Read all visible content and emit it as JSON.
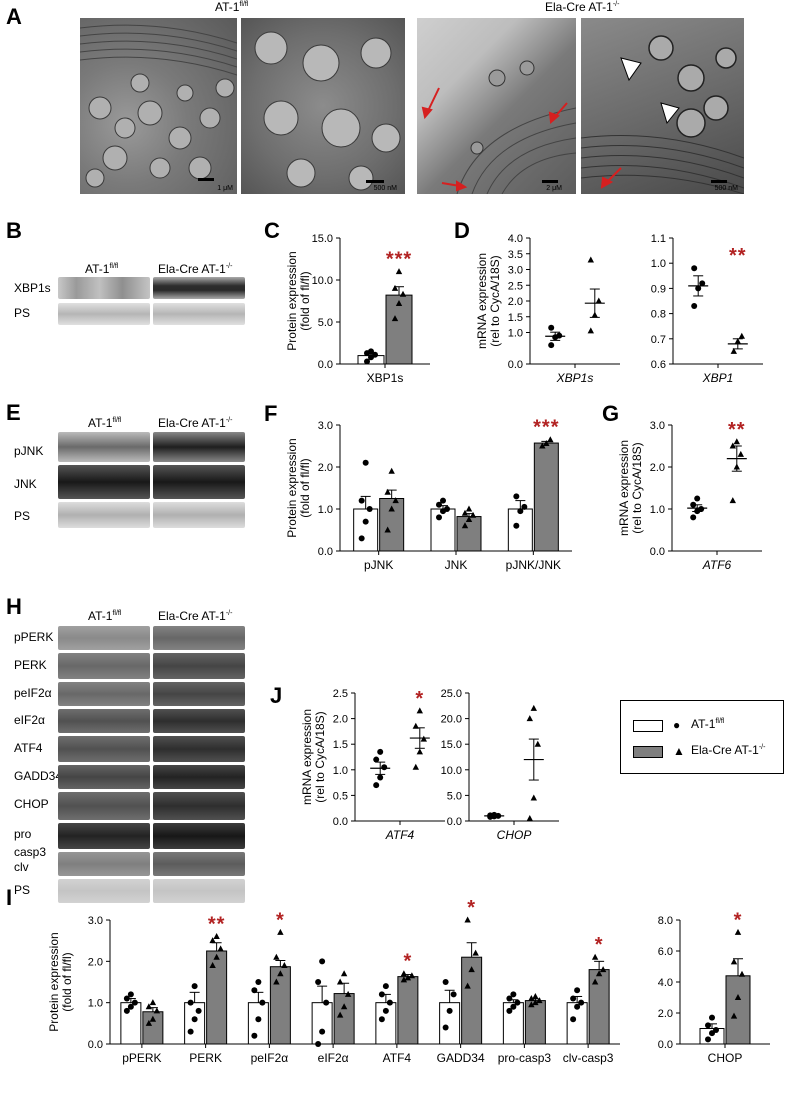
{
  "panels": {
    "A": "A",
    "B": "B",
    "C": "C",
    "D": "D",
    "E": "E",
    "F": "F",
    "G": "G",
    "H": "H",
    "I": "I",
    "J": "J"
  },
  "genotypes": {
    "control": "AT-1",
    "control_sup": "fl/fl",
    "knockout": "Ela-Cre AT-1",
    "knockout_sup": "-/-"
  },
  "em": {
    "scalebars": [
      "1 μM",
      "500 nM",
      "2 μM",
      "500 nM"
    ]
  },
  "blots": {
    "B": [
      "XBP1s",
      "PS"
    ],
    "E": [
      "pJNK",
      "JNK",
      "PS"
    ],
    "H": [
      "pPERK",
      "PERK",
      "peIF2α",
      "eIF2α",
      "ATF4",
      "GADD34",
      "CHOP",
      "pro",
      "casp3",
      "clv",
      "PS"
    ]
  },
  "legend": {
    "control": "AT-1",
    "control_sup": "fl/fl",
    "knockout": "Ela-Cre AT-1",
    "knockout_sup": "-/-"
  },
  "colors": {
    "control_bar": "#ffffff",
    "knockout_bar": "#7f7f7f",
    "significance": "#b22222"
  },
  "chart_data": [
    {
      "panel": "C",
      "type": "bar",
      "ylabel": [
        "Protein expression",
        "(fold of fl/fl)"
      ],
      "categories": [
        "XBP1s"
      ],
      "ylim": [
        0,
        15
      ],
      "yticks": [
        "0.0",
        "5.0",
        "10.0",
        "15.0"
      ],
      "series": [
        {
          "name": "AT-1 fl/fl",
          "values": [
            1.0
          ],
          "sem": [
            0.3
          ],
          "points": [
            [
              0.3,
              0.8,
              1.1,
              1.3,
              1.5
            ]
          ]
        },
        {
          "name": "Ela-Cre AT-1 -/-",
          "values": [
            8.2
          ],
          "sem": [
            1.0
          ],
          "points": [
            [
              5.4,
              7.2,
              8.3,
              9.0,
              11.0
            ]
          ]
        }
      ],
      "significance": [
        "***"
      ]
    },
    {
      "panel": "D1",
      "type": "scatter",
      "ylabel": [
        "mRNA expression",
        "(rel to CycA/18S)"
      ],
      "categories": [
        "XBP1s"
      ],
      "ylim": [
        0,
        4
      ],
      "yticks": [
        "0.0",
        "1.0",
        "1.5",
        "2.0",
        "2.5",
        "3.0",
        "3.5",
        "4.0"
      ],
      "series": [
        {
          "name": "AT-1 fl/fl",
          "values": [
            0.88
          ],
          "sem": [
            0.13
          ],
          "points": [
            [
              0.6,
              0.85,
              0.9,
              1.15
            ]
          ]
        },
        {
          "name": "Ela-Cre AT-1 -/-",
          "values": [
            1.93
          ],
          "sem": [
            0.45
          ],
          "points": [
            [
              1.05,
              1.55,
              2.0,
              3.3
            ]
          ]
        }
      ],
      "significance": [
        ""
      ]
    },
    {
      "panel": "D2",
      "type": "scatter",
      "categories": [
        "XBP1"
      ],
      "ylim": [
        0.6,
        1.1
      ],
      "yticks": [
        "0.6",
        "0.7",
        "0.8",
        "0.9",
        "1.0",
        "1.1"
      ],
      "series": [
        {
          "name": "AT-1 fl/fl",
          "values": [
            0.91
          ],
          "sem": [
            0.04
          ],
          "points": [
            [
              0.83,
              0.9,
              0.92,
              0.98
            ]
          ]
        },
        {
          "name": "Ela-Cre AT-1 -/-",
          "values": [
            0.68
          ],
          "sem": [
            0.02
          ],
          "points": [
            [
              0.65,
              0.69,
              0.71
            ]
          ]
        }
      ],
      "significance": [
        "**"
      ]
    },
    {
      "panel": "F",
      "type": "bar",
      "ylabel": [
        "Protein expression",
        "(fold of fl/fl)"
      ],
      "categories": [
        "pJNK",
        "JNK",
        "pJNK/JNK"
      ],
      "ylim": [
        0,
        3
      ],
      "yticks": [
        "0.0",
        "1.0",
        "2.0",
        "3.0"
      ],
      "series": [
        {
          "name": "AT-1 fl/fl",
          "values": [
            1.0,
            1.0,
            1.0
          ],
          "sem": [
            0.3,
            0.08,
            0.2
          ],
          "points": [
            [
              0.3,
              0.7,
              1.0,
              1.2,
              2.1
            ],
            [
              0.8,
              0.95,
              1.0,
              1.1,
              1.2
            ],
            [
              0.6,
              0.95,
              1.05,
              1.3
            ]
          ]
        },
        {
          "name": "Ela-Cre AT-1 -/-",
          "values": [
            1.25,
            0.82,
            2.57
          ],
          "sem": [
            0.2,
            0.07,
            0.04
          ],
          "points": [
            [
              0.5,
              1.0,
              1.2,
              1.4,
              1.9
            ],
            [
              0.6,
              0.75,
              0.85,
              0.9,
              1.0
            ],
            [
              2.5,
              2.56,
              2.65
            ]
          ]
        }
      ],
      "significance": [
        "",
        "",
        "***"
      ]
    },
    {
      "panel": "G",
      "type": "scatter",
      "ylabel": [
        "mRNA expression",
        "(rel to CycA/18S)"
      ],
      "categories": [
        "ATF6"
      ],
      "ylim": [
        0,
        3
      ],
      "yticks": [
        "0.0",
        "1.0",
        "2.0",
        "3.0"
      ],
      "series": [
        {
          "name": "AT-1 fl/fl",
          "values": [
            1.02
          ],
          "sem": [
            0.08
          ],
          "points": [
            [
              0.8,
              0.95,
              1.0,
              1.1,
              1.25
            ]
          ]
        },
        {
          "name": "Ela-Cre AT-1 -/-",
          "values": [
            2.2
          ],
          "sem": [
            0.3
          ],
          "points": [
            [
              1.2,
              2.0,
              2.3,
              2.5,
              2.6
            ]
          ]
        }
      ],
      "significance": [
        "**"
      ]
    },
    {
      "panel": "J1",
      "type": "scatter",
      "ylabel": [
        "mRNA expression",
        "(rel to CycA/18S)"
      ],
      "categories": [
        "ATF4"
      ],
      "ylim": [
        0,
        2.5
      ],
      "yticks": [
        "0.0",
        "0.5",
        "1.0",
        "1.5",
        "2.0",
        "2.5"
      ],
      "series": [
        {
          "name": "AT-1 fl/fl",
          "values": [
            1.03
          ],
          "sem": [
            0.12
          ],
          "points": [
            [
              0.7,
              0.85,
              1.05,
              1.2,
              1.35
            ]
          ]
        },
        {
          "name": "Ela-Cre AT-1 -/-",
          "values": [
            1.62
          ],
          "sem": [
            0.2
          ],
          "points": [
            [
              1.05,
              1.35,
              1.6,
              1.85,
              2.15
            ]
          ]
        }
      ],
      "significance": [
        "*"
      ]
    },
    {
      "panel": "J2",
      "type": "scatter",
      "categories": [
        "CHOP"
      ],
      "ylim": [
        0,
        25
      ],
      "yticks": [
        "0.0",
        "5.0",
        "10.0",
        "15.0",
        "20.0",
        "25.0"
      ],
      "series": [
        {
          "name": "AT-1 fl/fl",
          "values": [
            1.0
          ],
          "sem": [
            0.1
          ],
          "points": [
            [
              0.8,
              0.9,
              1.0,
              1.1,
              1.2
            ]
          ]
        },
        {
          "name": "Ela-Cre AT-1 -/-",
          "values": [
            12.0
          ],
          "sem": [
            4.0
          ],
          "points": [
            [
              0.5,
              4.5,
              15.0,
              20.0,
              22.0
            ]
          ]
        }
      ],
      "significance": [
        ""
      ]
    },
    {
      "panel": "I1",
      "type": "bar",
      "ylabel": [
        "Protein expression",
        "(fold of fl/fl)"
      ],
      "categories": [
        "pPERK",
        "PERK",
        "peIF2α",
        "eIF2α",
        "ATF4",
        "GADD34",
        "pro-casp3",
        "clv-casp3"
      ],
      "ylim": [
        0,
        3
      ],
      "yticks": [
        "0.0",
        "1.0",
        "2.0",
        "3.0"
      ],
      "series": [
        {
          "name": "AT-1 fl/fl",
          "values": [
            1.0,
            1.0,
            1.0,
            1.0,
            1.0,
            1.0,
            1.0,
            1.0
          ],
          "sem": [
            0.1,
            0.25,
            0.25,
            0.4,
            0.2,
            0.3,
            0.07,
            0.15
          ],
          "points": [
            [
              0.8,
              0.9,
              1.0,
              1.1,
              1.2
            ],
            [
              0.3,
              0.6,
              0.8,
              1.0,
              1.4
            ],
            [
              0.2,
              0.6,
              1.0,
              1.3,
              1.5
            ],
            [
              0.0,
              0.3,
              1.0,
              1.5,
              2.0
            ],
            [
              0.6,
              0.8,
              1.0,
              1.2,
              1.4
            ],
            [
              0.4,
              0.8,
              1.2,
              1.5
            ],
            [
              0.8,
              0.9,
              1.0,
              1.1,
              1.2
            ],
            [
              0.6,
              0.9,
              1.0,
              1.1,
              1.3
            ]
          ]
        },
        {
          "name": "Ela-Cre AT-1 -/-",
          "values": [
            0.78,
            2.25,
            1.87,
            1.22,
            1.63,
            2.1,
            1.05,
            1.8
          ],
          "sem": [
            0.1,
            0.2,
            0.15,
            0.25,
            0.05,
            0.35,
            0.04,
            0.2
          ],
          "points": [
            [
              0.5,
              0.6,
              0.8,
              0.9,
              1.0
            ],
            [
              1.9,
              2.1,
              2.3,
              2.5,
              2.6
            ],
            [
              1.5,
              1.7,
              1.9,
              2.1,
              2.7
            ],
            [
              0.7,
              0.9,
              1.2,
              1.5,
              1.7
            ],
            [
              1.55,
              1.6,
              1.65,
              1.7
            ],
            [
              1.4,
              1.8,
              2.2,
              3.0
            ],
            [
              0.95,
              1.0,
              1.05,
              1.1,
              1.15
            ],
            [
              1.5,
              1.7,
              1.8,
              2.1
            ]
          ]
        }
      ],
      "significance": [
        "",
        "**",
        "*",
        "",
        "*",
        "*",
        "",
        "*"
      ]
    },
    {
      "panel": "I2",
      "type": "bar",
      "categories": [
        "CHOP"
      ],
      "ylim": [
        0,
        8
      ],
      "yticks": [
        "0.0",
        "2.0",
        "4.0",
        "6.0",
        "8.0"
      ],
      "series": [
        {
          "name": "AT-1 fl/fl",
          "values": [
            1.0
          ],
          "sem": [
            0.3
          ],
          "points": [
            [
              0.3,
              0.7,
              0.9,
              1.2,
              1.7
            ]
          ]
        },
        {
          "name": "Ela-Cre AT-1 -/-",
          "values": [
            4.4
          ],
          "sem": [
            1.1
          ],
          "points": [
            [
              1.8,
              3.0,
              4.5,
              5.3,
              7.2
            ]
          ]
        }
      ],
      "significance": [
        "*"
      ]
    }
  ]
}
